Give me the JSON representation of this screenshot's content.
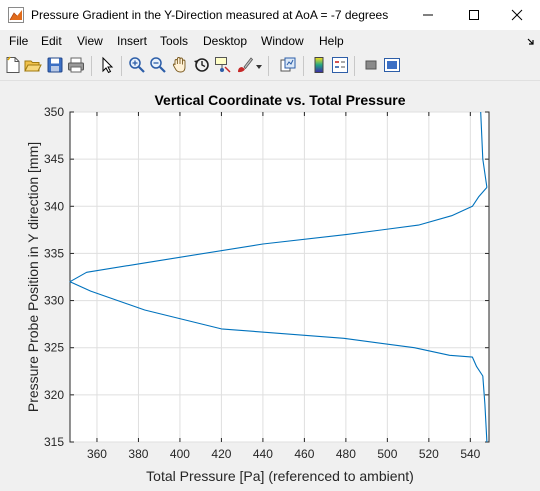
{
  "window": {
    "title": "Pressure Gradient in the Y-Direction measured at AoA = -7 degrees",
    "icon": "matlab-figure-icon",
    "controls": [
      "minimize-icon",
      "maximize-icon",
      "close-icon"
    ]
  },
  "menu": {
    "items": [
      "File",
      "Edit",
      "View",
      "Insert",
      "Tools",
      "Desktop",
      "Window",
      "Help"
    ],
    "overflow_icon": "dock-arrow-icon"
  },
  "toolbar": {
    "buttons": [
      "new-figure-icon",
      "open-file-icon",
      "save-icon",
      "print-icon",
      "edit-plot-icon",
      "zoom-in-icon",
      "zoom-out-icon",
      "pan-icon",
      "rotate-3d-icon",
      "data-cursor-icon",
      "brush-icon",
      "link-plot-icon",
      "colorbar-icon",
      "legend-icon",
      "hide-plot-tools-icon",
      "show-plot-tools-icon"
    ]
  },
  "chart_data": {
    "type": "line",
    "title": "Vertical Coordinate vs. Total Pressure",
    "xlabel": "Total Pressure [Pa] (referenced to ambient)",
    "ylabel": "Pressure Probe Position in Y direction [mm]",
    "xlim": [
      347,
      549
    ],
    "ylim": [
      315,
      350
    ],
    "xticks": [
      360,
      380,
      400,
      420,
      440,
      460,
      480,
      500,
      520,
      540
    ],
    "yticks": [
      315,
      320,
      325,
      330,
      335,
      340,
      345,
      350
    ],
    "grid": true,
    "line_color": "#0072bd",
    "series": [
      {
        "x": [
          548,
          547,
          546,
          543,
          541,
          530,
          513,
          479,
          420,
          383,
          357,
          347,
          355,
          383,
          440,
          480,
          515,
          531,
          541,
          544,
          548
        ],
        "y": [
          315,
          319,
          322,
          323,
          324,
          324.2,
          325,
          326,
          327,
          329,
          331,
          332,
          333,
          334,
          336,
          337,
          338,
          339,
          340,
          341,
          342
        ]
      },
      {
        "x": [
          548,
          546,
          545
        ],
        "y": [
          342,
          345,
          350
        ]
      }
    ]
  }
}
